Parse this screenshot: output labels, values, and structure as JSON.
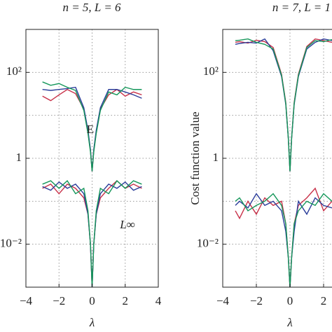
{
  "chart_data": [
    {
      "type": "line",
      "title": "n = 5, L = 6",
      "xlabel": "λ",
      "log_y": true,
      "grid": true,
      "annotations": [
        "E",
        "L∞"
      ],
      "xlim": [
        -4,
        4
      ],
      "ylim": [
        0.001,
        1000
      ],
      "xticks": [
        {
          "value": -4,
          "label": "−4"
        },
        {
          "value": -2,
          "label": "−2"
        },
        0,
        2,
        4
      ],
      "yticks": [
        {
          "value": 100,
          "label": "10²"
        },
        1,
        {
          "value": 0.01,
          "label": "10⁻²"
        }
      ],
      "minor_yticks": [
        1000,
        10,
        0.1,
        0.001
      ],
      "x": [
        -3,
        -2.5,
        -2,
        -1.5,
        -1,
        -0.5,
        -0.25,
        -0.1,
        0,
        0.1,
        0.25,
        0.5,
        1,
        1.5,
        2,
        2.5,
        3
      ],
      "series": [
        {
          "color": "#c8324a",
          "values": [
            28,
            22,
            30,
            40,
            32,
            14,
            4,
            1.5,
            0.5,
            1.5,
            4,
            14,
            30,
            40,
            28,
            35,
            30
          ]
        },
        {
          "color": "#2b3d9a",
          "values": [
            40,
            38,
            40,
            42,
            45,
            15,
            4.5,
            1.6,
            0.5,
            1.6,
            4.5,
            15,
            40,
            40,
            35,
            30,
            25
          ]
        },
        {
          "color": "#15975a",
          "values": [
            60,
            50,
            55,
            45,
            38,
            13,
            3.8,
            1.4,
            0.5,
            1.4,
            3.8,
            13,
            35,
            30,
            45,
            40,
            40
          ]
        },
        {
          "color": "#c8324a",
          "values": [
            0.2,
            0.25,
            0.15,
            0.25,
            0.2,
            0.12,
            0.05,
            0.01,
            0.001,
            0.01,
            0.05,
            0.12,
            0.2,
            0.3,
            0.2,
            0.25,
            0.2
          ]
        },
        {
          "color": "#2b3d9a",
          "values": [
            0.22,
            0.18,
            0.28,
            0.2,
            0.25,
            0.15,
            0.05,
            0.01,
            0.001,
            0.01,
            0.05,
            0.15,
            0.25,
            0.2,
            0.28,
            0.18,
            0.22
          ]
        },
        {
          "color": "#15975a",
          "values": [
            0.25,
            0.3,
            0.2,
            0.3,
            0.15,
            0.2,
            0.06,
            0.01,
            0.001,
            0.01,
            0.06,
            0.2,
            0.15,
            0.3,
            0.2,
            0.3,
            0.25
          ]
        }
      ]
    },
    {
      "type": "line",
      "title": "n = 7, L = 1",
      "xlabel": "λ",
      "ylabel": "Cost function value",
      "log_y": true,
      "grid": true,
      "xlim": [
        -4,
        2.5
      ],
      "ylim": [
        0.001,
        1000
      ],
      "xticks": [
        {
          "value": -4,
          "label": "−4"
        },
        {
          "value": -2,
          "label": "−2"
        },
        0,
        2
      ],
      "yticks": [
        {
          "value": 100,
          "label": "10²"
        },
        1,
        {
          "value": 0.01,
          "label": "10⁻²"
        }
      ],
      "minor_yticks": [
        1000,
        10,
        0.1,
        0.001
      ],
      "x": [
        -3.25,
        -3,
        -2.5,
        -2,
        -1.5,
        -1,
        -0.5,
        -0.25,
        -0.1,
        0,
        0.1,
        0.25,
        0.5,
        1,
        1.5,
        2,
        2.5
      ],
      "series": [
        {
          "color": "#c8324a",
          "values": [
            500,
            520,
            480,
            560,
            520,
            380,
            90,
            20,
            3,
            0.5,
            3,
            20,
            90,
            400,
            600,
            550,
            500
          ]
        },
        {
          "color": "#2b3d9a",
          "values": [
            450,
            470,
            500,
            480,
            600,
            320,
            80,
            18,
            3,
            0.5,
            3,
            18,
            80,
            350,
            500,
            600,
            550
          ]
        },
        {
          "color": "#15975a",
          "values": [
            550,
            560,
            600,
            500,
            450,
            350,
            85,
            19,
            3,
            0.5,
            3,
            19,
            85,
            380,
            550,
            520,
            580
          ]
        },
        {
          "color": "#c8324a",
          "values": [
            0.06,
            0.04,
            0.1,
            0.05,
            0.12,
            0.08,
            0.1,
            0.03,
            0.005,
            0.001,
            0.005,
            0.03,
            0.08,
            0.12,
            0.2,
            0.06,
            0.1
          ]
        },
        {
          "color": "#2b3d9a",
          "values": [
            0.08,
            0.1,
            0.07,
            0.15,
            0.08,
            0.1,
            0.06,
            0.02,
            0.005,
            0.001,
            0.005,
            0.02,
            0.1,
            0.05,
            0.12,
            0.08,
            0.07
          ]
        },
        {
          "color": "#15975a",
          "values": [
            0.1,
            0.12,
            0.06,
            0.08,
            0.1,
            0.15,
            0.08,
            0.03,
            0.005,
            0.001,
            0.005,
            0.03,
            0.06,
            0.1,
            0.08,
            0.15,
            0.1
          ]
        }
      ]
    }
  ]
}
